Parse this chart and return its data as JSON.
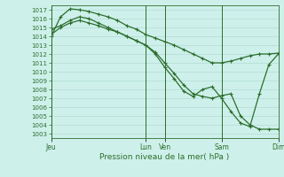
{
  "title": "Pression niveau de la mer( hPa )",
  "bg_color": "#cef0ea",
  "grid_major_color": "#a8d8d0",
  "grid_minor_color": "#c0e8e2",
  "line_color": "#2d6e2d",
  "ylim": [
    1002.5,
    1017.5
  ],
  "ytick_min": 1003,
  "ytick_max": 1017,
  "xtick_labels": [
    "Jeu",
    "Lun",
    "Ven",
    "Sam",
    "Dim"
  ],
  "xtick_positions": [
    0,
    10,
    12,
    18,
    24
  ],
  "xlim": [
    0,
    24
  ],
  "line1_x": [
    0,
    1,
    2,
    3,
    4,
    5,
    6,
    7,
    8,
    9,
    10,
    11,
    12,
    13,
    14,
    15,
    16,
    17,
    18,
    19,
    20,
    21,
    22,
    23,
    24
  ],
  "line1_y": [
    1014.0,
    1016.2,
    1017.1,
    1017.0,
    1016.8,
    1016.5,
    1016.2,
    1015.8,
    1015.2,
    1014.8,
    1014.2,
    1013.8,
    1013.4,
    1013.0,
    1012.5,
    1012.0,
    1011.5,
    1011.0,
    1011.0,
    1011.2,
    1011.5,
    1011.8,
    1012.0,
    1012.0,
    1012.1
  ],
  "line2_x": [
    0,
    1,
    2,
    3,
    4,
    5,
    6,
    7,
    8,
    9,
    10,
    11,
    12,
    13,
    14,
    15,
    16,
    17,
    18,
    19,
    20,
    21,
    22,
    23,
    24
  ],
  "line2_y": [
    1014.8,
    1015.2,
    1015.8,
    1016.2,
    1016.0,
    1015.5,
    1015.0,
    1014.5,
    1014.0,
    1013.5,
    1013.0,
    1012.2,
    1011.0,
    1009.8,
    1008.5,
    1007.5,
    1007.2,
    1007.0,
    1007.3,
    1007.5,
    1005.0,
    1004.0,
    1003.5,
    1003.5,
    1003.5
  ],
  "line3_x": [
    0,
    1,
    2,
    3,
    4,
    5,
    6,
    7,
    8,
    9,
    10,
    11,
    12,
    13,
    14,
    15,
    16,
    17,
    18,
    19,
    20,
    21,
    22,
    23,
    24
  ],
  "line3_y": [
    1014.2,
    1015.0,
    1015.5,
    1015.8,
    1015.5,
    1015.2,
    1014.8,
    1014.5,
    1014.0,
    1013.5,
    1013.0,
    1012.0,
    1010.5,
    1009.2,
    1007.8,
    1007.2,
    1008.0,
    1008.3,
    1007.0,
    1005.5,
    1004.2,
    1003.8,
    1007.5,
    1010.8,
    1012.0
  ],
  "vline_positions": [
    0,
    10,
    12,
    18,
    24
  ]
}
